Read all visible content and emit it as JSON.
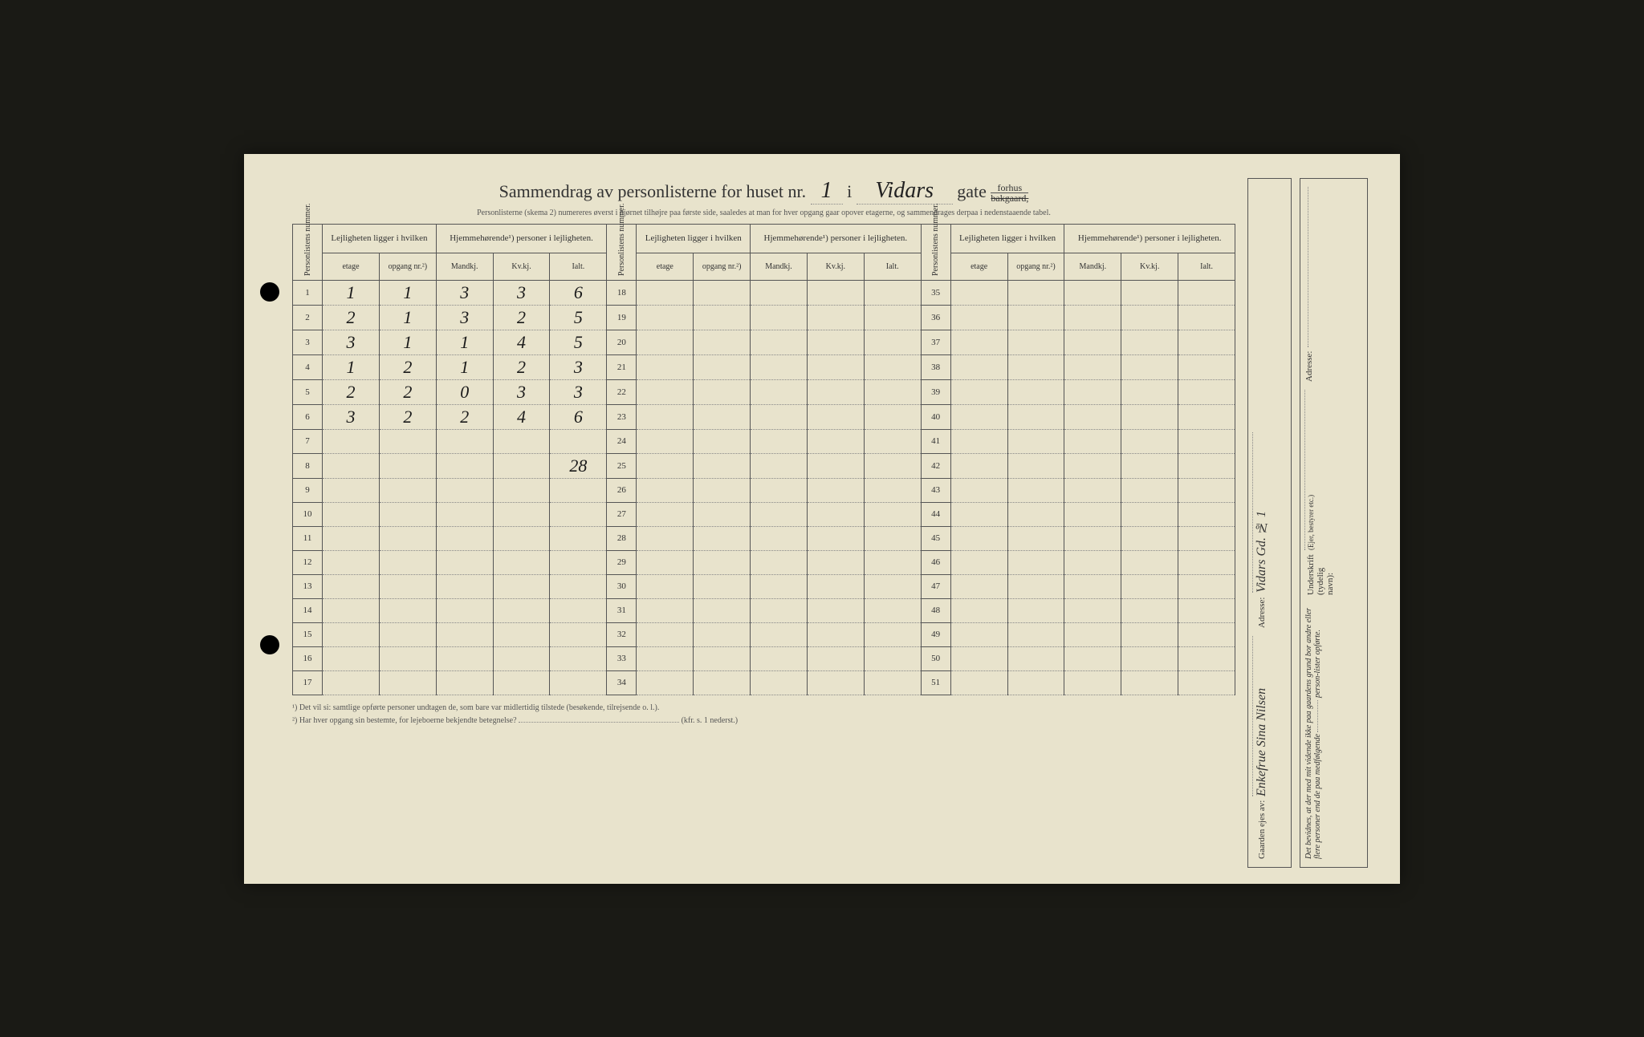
{
  "colors": {
    "paper": "#e8e3cc",
    "ink": "#333333",
    "handwriting": "#1a1a1a",
    "border": "#555555",
    "dotted": "#888888"
  },
  "typography": {
    "printed_font": "Georgia, Times New Roman, serif",
    "handwritten_font": "Brush Script MT, cursive",
    "title_size_pt": 22,
    "body_size_pt": 11,
    "handwriting_size_pt": 22
  },
  "header": {
    "title_prefix": "Sammendrag av personlisterne for huset nr.",
    "house_number": "1",
    "title_mid": "i",
    "street_name": "Vidars",
    "title_suffix": "gate",
    "forhus": "forhus",
    "bakgaard": "bakgaard,",
    "instruction": "Personlisterne (skema 2) numereres øverst i hjørnet tilhøjre paa første side, saaledes at man for hver opgang gaar opover etagerne, og sammendrages derpaa i nedenstaaende tabel."
  },
  "table": {
    "col_groups": 3,
    "rows_per_group": 17,
    "headers": {
      "personlistens": "Personlistens\nnummer.",
      "lejligheten": "Lejligheten\nligger i hvilken",
      "hjemme": "Hjemmehørende¹) personer i lejligheten.",
      "etage": "etage",
      "opgang": "opgang\nnr.²)",
      "mandkj": "Mandkj.",
      "kvkj": "Kv.kj.",
      "ialt": "Ialt."
    },
    "row_numbers_g1": [
      1,
      2,
      3,
      4,
      5,
      6,
      7,
      8,
      9,
      10,
      11,
      12,
      13,
      14,
      15,
      16,
      17
    ],
    "row_numbers_g2": [
      18,
      19,
      20,
      21,
      22,
      23,
      24,
      25,
      26,
      27,
      28,
      29,
      30,
      31,
      32,
      33,
      34
    ],
    "row_numbers_g3": [
      35,
      36,
      37,
      38,
      39,
      40,
      41,
      42,
      43,
      44,
      45,
      46,
      47,
      48,
      49,
      50,
      51
    ],
    "data_g1": [
      {
        "etage": "1",
        "opgang": "1",
        "m": "3",
        "k": "3",
        "i": "6"
      },
      {
        "etage": "2",
        "opgang": "1",
        "m": "3",
        "k": "2",
        "i": "5"
      },
      {
        "etage": "3",
        "opgang": "1",
        "m": "1",
        "k": "4",
        "i": "5"
      },
      {
        "etage": "1",
        "opgang": "2",
        "m": "1",
        "k": "2",
        "i": "3"
      },
      {
        "etage": "2",
        "opgang": "2",
        "m": "0",
        "k": "3",
        "i": "3"
      },
      {
        "etage": "3",
        "opgang": "2",
        "m": "2",
        "k": "4",
        "i": "6"
      },
      {
        "etage": "",
        "opgang": "",
        "m": "",
        "k": "",
        "i": ""
      },
      {
        "etage": "",
        "opgang": "",
        "m": "",
        "k": "",
        "i": "28"
      },
      {
        "etage": "",
        "opgang": "",
        "m": "",
        "k": "",
        "i": ""
      },
      {
        "etage": "",
        "opgang": "",
        "m": "",
        "k": "",
        "i": ""
      },
      {
        "etage": "",
        "opgang": "",
        "m": "",
        "k": "",
        "i": ""
      },
      {
        "etage": "",
        "opgang": "",
        "m": "",
        "k": "",
        "i": ""
      },
      {
        "etage": "",
        "opgang": "",
        "m": "",
        "k": "",
        "i": ""
      },
      {
        "etage": "",
        "opgang": "",
        "m": "",
        "k": "",
        "i": ""
      },
      {
        "etage": "",
        "opgang": "",
        "m": "",
        "k": "",
        "i": ""
      },
      {
        "etage": "",
        "opgang": "",
        "m": "",
        "k": "",
        "i": ""
      },
      {
        "etage": "",
        "opgang": "",
        "m": "",
        "k": "",
        "i": ""
      }
    ]
  },
  "footnotes": {
    "note1": "¹) Det vil si: samtlige opførte personer undtagen de, som bare var midlertidig tilstede (besøkende, tilrejsende o. l.).",
    "note2": "²) Har hver opgang sin bestemte, for lejeboerne bekjendte betegnelse?",
    "note2_ref": "(kfr. s. 1 nederst.)"
  },
  "side_right": {
    "gaarden_label": "Gaarden ejes av:",
    "gaarden_value": "Enkefrue Sina Nilsen",
    "adresse_label": "Adresse:",
    "adresse_value": "Vidars Gd. № 1"
  },
  "side_far_right": {
    "bevidnes": "Det bevidnes, at der med mit vidende ikke paa gaardens grund bor andre eller flere personer end de paa medfølgende",
    "person_lister": "person-lister opførte.",
    "underskrift_label": "Underskrift (tydelig navn):",
    "ejer_note": "(Ejer, bestyrer etc.)",
    "adresse_label": "Adresse:"
  }
}
